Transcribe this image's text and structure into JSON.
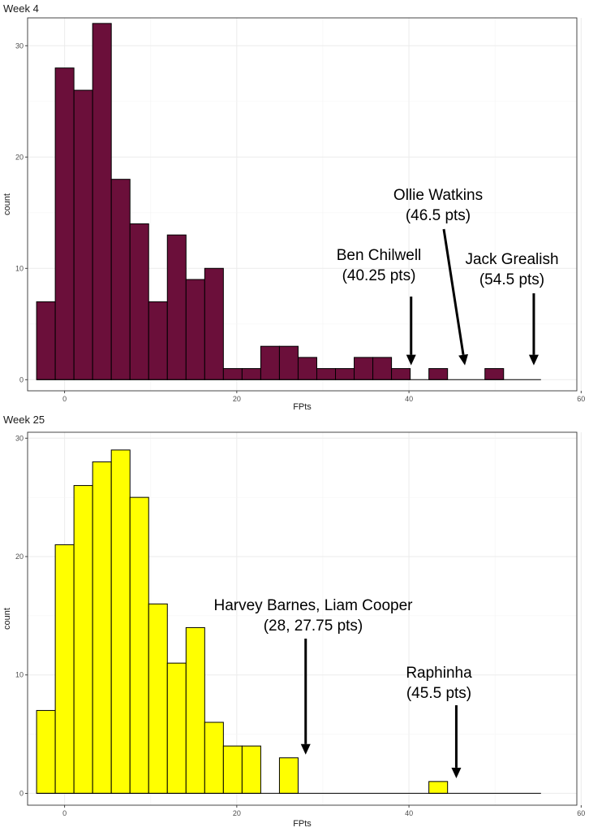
{
  "chart_data": [
    {
      "type": "bar",
      "title": "Week 4",
      "xlabel": "FPts",
      "ylabel": "count",
      "fill": "#6b0f3a",
      "bin_width": 2.17,
      "bin_start": -3.255,
      "bin_count": 27,
      "xlim": [
        -4.3,
        59.5
      ],
      "ylim": [
        -1,
        32.5
      ],
      "x_ticks": [
        0,
        20,
        40,
        60
      ],
      "y_ticks": [
        0,
        10,
        20,
        30
      ],
      "values": [
        7,
        28,
        26,
        32,
        18,
        14,
        7,
        13,
        9,
        10,
        1,
        1,
        3,
        3,
        2,
        1,
        1,
        2,
        2,
        1,
        0,
        1,
        0,
        0,
        1,
        0,
        0
      ],
      "annotations": [
        {
          "lines": [
            "Ben Chilwell",
            "(40.25 pts)"
          ],
          "x": 40.25,
          "count": 1
        },
        {
          "lines": [
            "Ollie Watkins",
            "(46.5 pts)"
          ],
          "x": 46.5,
          "count": 1
        },
        {
          "lines": [
            "Jack Grealish",
            "(54.5 pts)"
          ],
          "x": 54.5,
          "count": 1
        }
      ]
    },
    {
      "type": "bar",
      "title": "Week 25",
      "xlabel": "FPts",
      "ylabel": "count",
      "fill": "#ffff00",
      "bin_width": 2.17,
      "bin_start": -3.255,
      "bin_count": 27,
      "xlim": [
        -4.3,
        59.5
      ],
      "ylim": [
        -1,
        30.5
      ],
      "x_ticks": [
        0,
        20,
        40,
        60
      ],
      "y_ticks": [
        0,
        10,
        20,
        30
      ],
      "values": [
        7,
        21,
        26,
        28,
        29,
        25,
        16,
        11,
        14,
        6,
        4,
        4,
        0,
        3,
        0,
        0,
        0,
        0,
        0,
        0,
        0,
        1,
        0,
        0,
        0,
        0,
        0
      ],
      "annotations": [
        {
          "lines": [
            "Harvey Barnes, Liam Cooper",
            "(28, 27.75 pts)"
          ],
          "x": 28,
          "count": 3
        },
        {
          "lines": [
            "Raphinha",
            "(45.5 pts)"
          ],
          "x": 45.5,
          "count": 1
        }
      ]
    }
  ]
}
